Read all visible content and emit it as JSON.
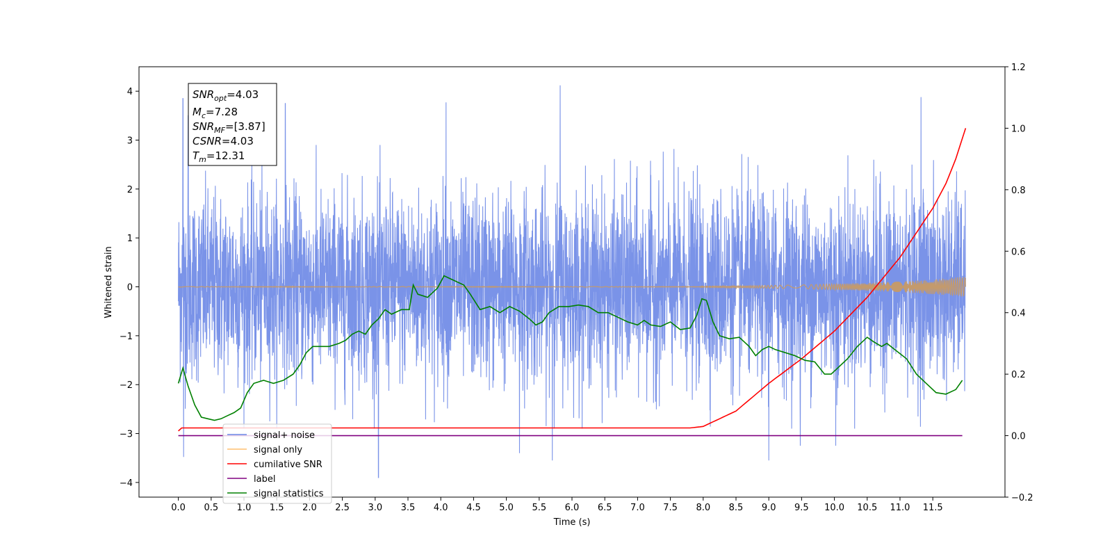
{
  "chart_data": {
    "type": "line",
    "title": "",
    "xlabel": "Time (s)",
    "ylabel": "Whitened strain",
    "xlim": [
      -0.6,
      12.6
    ],
    "ylim": [
      -4.3,
      4.5
    ],
    "y2lim": [
      -0.2,
      1.2
    ],
    "x_ticks": [
      0.0,
      0.5,
      1.0,
      1.5,
      2.0,
      2.5,
      3.0,
      3.5,
      4.0,
      4.5,
      5.0,
      5.5,
      6.0,
      6.5,
      7.0,
      7.5,
      8.0,
      8.5,
      9.0,
      9.5,
      10.0,
      10.5,
      11.0,
      11.5
    ],
    "x_tick_labels": [
      "0.0",
      "0.5",
      "1.0",
      "1.5",
      "2.0",
      "2.5",
      "3.0",
      "3.5",
      "4.0",
      "4.5",
      "5.0",
      "5.5",
      "6.0",
      "6.5",
      "7.0",
      "7.5",
      "8.0",
      "8.5",
      "9.0",
      "9.5",
      "10.0",
      "10.5",
      "11.0",
      "11.5"
    ],
    "y_ticks": [
      -4,
      -3,
      -2,
      -1,
      0,
      1,
      2,
      3,
      4
    ],
    "y_tick_labels": [
      "−4",
      "−3",
      "−2",
      "−1",
      "0",
      "1",
      "2",
      "3",
      "4"
    ],
    "y2_ticks": [
      -0.2,
      0.0,
      0.2,
      0.4,
      0.6,
      0.8,
      1.0,
      1.2
    ],
    "y2_tick_labels": [
      "−0.2",
      "0.0",
      "0.2",
      "0.4",
      "0.6",
      "0.8",
      "1.0",
      "1.2"
    ],
    "grid": false,
    "legend": {
      "placement": "lower-left",
      "entries": [
        {
          "label": "signal+ noise",
          "color": "#6b86e6"
        },
        {
          "label": "signal only",
          "color": "#ffbf6e"
        },
        {
          "label": "cumilative SNR",
          "color": "#ff0000"
        },
        {
          "label": "label",
          "color": "#800080"
        },
        {
          "label": "signal statistics",
          "color": "#008000"
        }
      ]
    },
    "stats_box": {
      "snr_opt": "=4.03",
      "mc": "=7.28",
      "snr_mf": "=[3.87]",
      "csnr": "=4.03",
      "tm": "=12.31"
    },
    "series": [
      {
        "name": "signal+ noise",
        "color": "#7a93e8",
        "axis": "left",
        "t_range": [
          0.0,
          12.0
        ],
        "envelope_typical": [
          -1.6,
          1.6
        ],
        "extremes": [
          [
            0.07,
            3.85
          ],
          [
            0.15,
            3.5
          ],
          [
            1.63,
            3.75
          ],
          [
            4.08,
            3.77
          ],
          [
            5.82,
            4.12
          ],
          [
            11.32,
            3.88
          ],
          [
            0.08,
            -3.48
          ],
          [
            3.05,
            -3.9
          ],
          [
            5.2,
            -3.4
          ],
          [
            5.7,
            -3.55
          ],
          [
            9.0,
            -3.55
          ],
          [
            9.48,
            -3.25
          ],
          [
            10.02,
            -3.25
          ]
        ]
      },
      {
        "name": "signal only",
        "color": "#c49a6c",
        "axis": "left",
        "amplitude": {
          "x": [
            0.0,
            7.5,
            8.5,
            9.5,
            10.5,
            11.0,
            11.5,
            12.0
          ],
          "y": [
            0.0,
            0.0,
            0.02,
            0.04,
            0.08,
            0.11,
            0.15,
            0.21
          ]
        }
      },
      {
        "name": "cumilative SNR",
        "color": "#ff0000",
        "axis": "right",
        "x": [
          0.0,
          0.02,
          7.5,
          7.8,
          8.0,
          8.5,
          9.0,
          9.5,
          10.0,
          10.5,
          11.0,
          11.5,
          11.7,
          11.85,
          12.0
        ],
        "y": [
          0.015,
          0.025,
          0.025,
          0.025,
          0.03,
          0.08,
          0.17,
          0.25,
          0.34,
          0.45,
          0.58,
          0.74,
          0.82,
          0.9,
          1.0
        ]
      },
      {
        "name": "label",
        "color": "#800080",
        "axis": "right",
        "x": [
          0.0,
          11.95
        ],
        "y": [
          0.0,
          0.0
        ]
      },
      {
        "name": "signal statistics",
        "color": "#008000",
        "axis": "right",
        "x": [
          0.0,
          0.07,
          0.15,
          0.25,
          0.35,
          0.45,
          0.55,
          0.65,
          0.75,
          0.85,
          0.95,
          1.05,
          1.15,
          1.3,
          1.45,
          1.6,
          1.75,
          1.85,
          1.95,
          2.05,
          2.15,
          2.3,
          2.45,
          2.55,
          2.65,
          2.75,
          2.85,
          2.95,
          3.05,
          3.15,
          3.25,
          3.4,
          3.52,
          3.58,
          3.65,
          3.8,
          3.95,
          4.05,
          4.15,
          4.25,
          4.35,
          4.45,
          4.6,
          4.75,
          4.9,
          5.05,
          5.2,
          5.35,
          5.45,
          5.55,
          5.65,
          5.8,
          5.95,
          6.1,
          6.25,
          6.4,
          6.55,
          6.7,
          6.85,
          7.0,
          7.1,
          7.2,
          7.35,
          7.5,
          7.65,
          7.8,
          7.9,
          7.98,
          8.05,
          8.15,
          8.25,
          8.4,
          8.55,
          8.7,
          8.8,
          8.9,
          9.0,
          9.1,
          9.25,
          9.4,
          9.55,
          9.7,
          9.85,
          9.95,
          10.05,
          10.2,
          10.35,
          10.5,
          10.6,
          10.72,
          10.8,
          10.95,
          11.1,
          11.25,
          11.4,
          11.55,
          11.7,
          11.85,
          11.95
        ],
        "y": [
          0.17,
          0.22,
          0.16,
          0.1,
          0.06,
          0.055,
          0.05,
          0.055,
          0.065,
          0.075,
          0.09,
          0.14,
          0.17,
          0.18,
          0.17,
          0.18,
          0.2,
          0.23,
          0.27,
          0.29,
          0.29,
          0.29,
          0.3,
          0.31,
          0.33,
          0.34,
          0.33,
          0.36,
          0.38,
          0.41,
          0.395,
          0.41,
          0.41,
          0.49,
          0.46,
          0.45,
          0.48,
          0.52,
          0.51,
          0.5,
          0.49,
          0.46,
          0.41,
          0.42,
          0.4,
          0.42,
          0.405,
          0.38,
          0.36,
          0.37,
          0.4,
          0.42,
          0.42,
          0.425,
          0.42,
          0.4,
          0.4,
          0.385,
          0.37,
          0.36,
          0.375,
          0.36,
          0.355,
          0.37,
          0.345,
          0.35,
          0.39,
          0.445,
          0.44,
          0.37,
          0.325,
          0.315,
          0.32,
          0.29,
          0.26,
          0.28,
          0.29,
          0.28,
          0.27,
          0.26,
          0.245,
          0.24,
          0.2,
          0.2,
          0.22,
          0.25,
          0.29,
          0.32,
          0.305,
          0.29,
          0.3,
          0.275,
          0.25,
          0.2,
          0.17,
          0.14,
          0.135,
          0.15,
          0.18
        ]
      }
    ]
  }
}
